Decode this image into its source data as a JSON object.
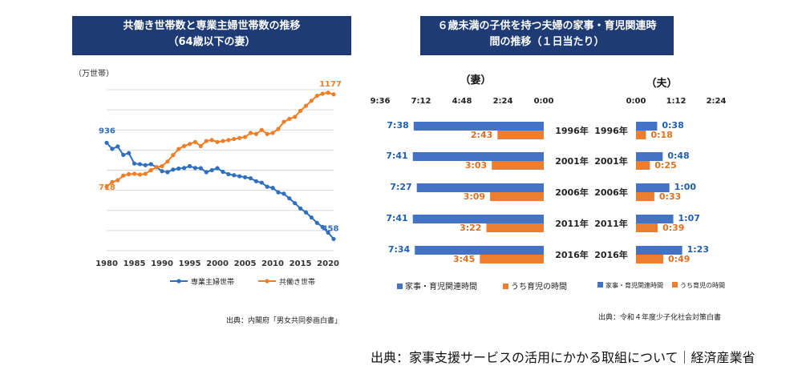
{
  "left_panel": {
    "title_line1": "共働き世帯数と専業主婦世帯数の推移",
    "title_line2": "（64歳以下の妻）",
    "source": "出典：内閣府「男女共同参画白書」"
  },
  "right_panel": {
    "title_line1": "６歳未満の子供を持つ夫婦の家事・育児関連時",
    "title_line2": "間の推移（１日当たり）",
    "source": "出典：令和４年度少子化社会対策白書"
  },
  "footer": "出典：家事支援サービスの活用にかかる取組について｜経済産業省",
  "chart_data": [
    {
      "type": "line",
      "title": "共働き世帯数と専業主婦世帯数の推移（64歳以下の妻）",
      "ylabel": "（万世帯）",
      "ylim": [
        400,
        1200
      ],
      "x_ticks": [
        1980,
        1985,
        1990,
        1995,
        2000,
        2005,
        2010,
        2015,
        2020
      ],
      "legend": "bottom",
      "colors": {
        "full_time_housewife": "#2e6fc0",
        "dual_income": "#f07e26"
      },
      "x": [
        1980,
        1981,
        1982,
        1983,
        1984,
        1985,
        1986,
        1987,
        1988,
        1989,
        1990,
        1991,
        1992,
        1993,
        1994,
        1995,
        1996,
        1997,
        1998,
        1999,
        2000,
        2001,
        2002,
        2003,
        2004,
        2005,
        2006,
        2007,
        2008,
        2009,
        2010,
        2011,
        2012,
        2013,
        2014,
        2015,
        2016,
        2017,
        2018,
        2019,
        2020,
        2021
      ],
      "series": [
        {
          "name": "専業主婦世帯",
          "key": "full_time_housewife",
          "values": [
            936,
            906,
            918,
            876,
            885,
            833,
            830,
            825,
            830,
            815,
            795,
            790,
            803,
            808,
            811,
            820,
            811,
            810,
            790,
            800,
            810,
            792,
            780,
            775,
            770,
            765,
            760,
            745,
            738,
            718,
            712,
            690,
            683,
            660,
            636,
            610,
            590,
            565,
            538,
            518,
            490,
            458
          ],
          "end_label": "458",
          "start_label": "936"
        },
        {
          "name": "共働き世帯",
          "key": "dual_income",
          "values": [
            718,
            741,
            750,
            773,
            780,
            782,
            778,
            782,
            800,
            815,
            820,
            843,
            875,
            905,
            920,
            930,
            940,
            920,
            945,
            950,
            940,
            945,
            950,
            955,
            960,
            965,
            985,
            980,
            1000,
            980,
            985,
            1005,
            1040,
            1055,
            1065,
            1095,
            1120,
            1145,
            1170,
            1180,
            1185,
            1177
          ],
          "end_label": "1177",
          "start_label": "718"
        }
      ]
    },
    {
      "type": "bar",
      "title": "６歳未満の子供を持つ夫婦の家事・育児関連時間の推移（１日当たり）",
      "panels": [
        {
          "name": "（妻）",
          "axis_ticks": [
            "9:36",
            "7:12",
            "4:48",
            "2:24",
            "0:00"
          ],
          "axis_max_minutes": 576,
          "direction": "right-to-left"
        },
        {
          "name": "（夫）",
          "axis_ticks": [
            "0:00",
            "1:12",
            "2:24"
          ],
          "axis_max_minutes": 144,
          "direction": "left-to-right"
        }
      ],
      "categories": [
        "1996年",
        "2001年",
        "2006年",
        "2011年",
        "2016年"
      ],
      "series": [
        {
          "name": "家事・育児関連時間",
          "color": "#4472c4",
          "wife_minutes": [
            458,
            461,
            447,
            461,
            454
          ],
          "wife_labels": [
            "7:38",
            "7:41",
            "7:27",
            "7:41",
            "7:34"
          ],
          "husband_minutes": [
            38,
            48,
            60,
            67,
            83
          ],
          "husband_labels": [
            "0:38",
            "0:48",
            "1:00",
            "1:07",
            "1:23"
          ]
        },
        {
          "name": "うち育児の時間",
          "color": "#ed7d31",
          "wife_minutes": [
            163,
            183,
            189,
            202,
            225
          ],
          "wife_labels": [
            "2:43",
            "3:03",
            "3:09",
            "3:22",
            "3:45"
          ],
          "husband_minutes": [
            18,
            25,
            33,
            39,
            49
          ],
          "husband_labels": [
            "0:18",
            "0:25",
            "0:33",
            "0:39",
            "0:49"
          ]
        }
      ]
    }
  ]
}
